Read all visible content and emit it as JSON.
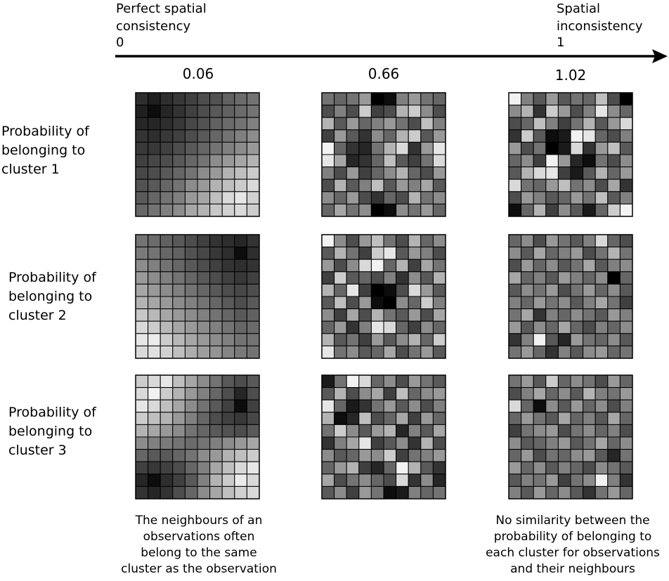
{
  "axis": {
    "left_label": "Perfect spatial\nconsistency",
    "left_value": "0",
    "right_label": "Spatial\ninconsistency",
    "right_value": "1"
  },
  "columns": [
    {
      "value": "0.06"
    },
    {
      "value": "0.66"
    },
    {
      "value": "1.02"
    }
  ],
  "rows": [
    {
      "label": "Probability of\nbelonging to\ncluster 1"
    },
    {
      "label": "Probability of\nbelonging to\ncluster 2"
    },
    {
      "label": "Probability of\nbelonging to\ncluster 3"
    }
  ],
  "notes": {
    "left": "The neighbours of an\nobservations often\nbelong  to the same\ncluster as the observation",
    "right": "No similarity between the\nprobability of belonging to\neach cluster for observations\nand their neighbours"
  },
  "grids": [
    [
      [
        [
          0.18,
          0.12,
          0.18,
          0.22,
          0.25,
          0.3,
          0.32,
          0.38,
          0.42,
          0.45
        ],
        [
          0.12,
          0.05,
          0.15,
          0.2,
          0.25,
          0.3,
          0.35,
          0.38,
          0.42,
          0.45
        ],
        [
          0.15,
          0.15,
          0.18,
          0.22,
          0.28,
          0.32,
          0.38,
          0.42,
          0.45,
          0.5
        ],
        [
          0.2,
          0.18,
          0.22,
          0.25,
          0.3,
          0.35,
          0.4,
          0.45,
          0.5,
          0.55
        ],
        [
          0.22,
          0.22,
          0.25,
          0.3,
          0.35,
          0.4,
          0.45,
          0.5,
          0.55,
          0.6
        ],
        [
          0.25,
          0.28,
          0.3,
          0.35,
          0.4,
          0.45,
          0.55,
          0.6,
          0.65,
          0.7
        ],
        [
          0.28,
          0.3,
          0.35,
          0.4,
          0.45,
          0.55,
          0.6,
          0.7,
          0.75,
          0.8
        ],
        [
          0.32,
          0.35,
          0.4,
          0.45,
          0.55,
          0.6,
          0.7,
          0.75,
          0.8,
          0.85
        ],
        [
          0.35,
          0.4,
          0.45,
          0.5,
          0.6,
          0.65,
          0.75,
          0.85,
          0.9,
          0.82
        ],
        [
          0.4,
          0.45,
          0.5,
          0.55,
          0.65,
          0.7,
          0.78,
          0.82,
          0.85,
          0.8
        ]
      ],
      [
        [
          0.45,
          0.4,
          0.45,
          0.6,
          0.0,
          0.05,
          0.5,
          0.6,
          0.45,
          0.4
        ],
        [
          0.3,
          0.5,
          0.3,
          0.8,
          0.25,
          0.3,
          0.7,
          0.8,
          0.55,
          0.3
        ],
        [
          0.7,
          0.35,
          0.6,
          0.4,
          0.5,
          0.6,
          0.45,
          0.3,
          0.75,
          0.5
        ],
        [
          0.25,
          0.6,
          0.35,
          0.2,
          0.55,
          0.4,
          0.7,
          0.8,
          0.35,
          0.6
        ],
        [
          0.95,
          0.4,
          0.2,
          0.15,
          0.45,
          0.7,
          0.85,
          0.2,
          0.6,
          0.9
        ],
        [
          0.9,
          0.65,
          0.15,
          0.2,
          0.4,
          0.75,
          0.35,
          0.25,
          0.45,
          0.85
        ],
        [
          0.5,
          0.3,
          0.6,
          0.25,
          0.4,
          0.55,
          0.7,
          0.4,
          0.3,
          0.6
        ],
        [
          0.3,
          0.7,
          0.35,
          0.5,
          0.75,
          0.35,
          0.6,
          0.5,
          0.65,
          0.35
        ],
        [
          0.55,
          0.4,
          0.6,
          0.3,
          0.2,
          0.4,
          0.3,
          0.7,
          0.45,
          0.55
        ],
        [
          0.4,
          0.65,
          0.45,
          0.55,
          0.0,
          0.05,
          0.55,
          0.45,
          0.6,
          0.4
        ]
      ],
      [
        [
          0.95,
          0.5,
          0.35,
          0.6,
          0.35,
          0.45,
          0.4,
          0.75,
          0.3,
          0.0
        ],
        [
          0.55,
          0.7,
          0.2,
          0.8,
          0.6,
          0.3,
          0.5,
          0.9,
          0.55,
          0.4
        ],
        [
          0.3,
          0.4,
          0.75,
          0.5,
          0.25,
          0.45,
          0.7,
          0.35,
          0.6,
          0.85
        ],
        [
          0.2,
          0.8,
          0.35,
          0.05,
          0.1,
          0.95,
          0.9,
          0.4,
          0.3,
          0.5
        ],
        [
          0.6,
          0.3,
          0.45,
          0.0,
          0.1,
          0.85,
          0.2,
          0.6,
          0.75,
          0.35
        ],
        [
          0.4,
          0.55,
          0.25,
          0.95,
          0.6,
          0.15,
          0.05,
          0.45,
          0.3,
          0.55
        ],
        [
          0.35,
          0.7,
          0.85,
          0.9,
          0.25,
          0.1,
          0.35,
          0.7,
          0.4,
          0.6
        ],
        [
          0.85,
          0.45,
          0.4,
          0.6,
          0.75,
          0.45,
          0.55,
          0.3,
          0.65,
          0.2
        ],
        [
          0.3,
          0.6,
          0.5,
          0.35,
          0.4,
          0.6,
          0.45,
          0.75,
          0.35,
          0.5
        ],
        [
          0.05,
          0.4,
          0.7,
          0.25,
          0.55,
          0.35,
          0.1,
          0.4,
          0.8,
          0.95
        ]
      ]
    ],
    [
      [
        [
          0.45,
          0.42,
          0.38,
          0.35,
          0.3,
          0.25,
          0.2,
          0.18,
          0.15,
          0.2
        ],
        [
          0.48,
          0.45,
          0.4,
          0.38,
          0.32,
          0.28,
          0.22,
          0.18,
          0.05,
          0.18
        ],
        [
          0.55,
          0.5,
          0.45,
          0.4,
          0.35,
          0.3,
          0.25,
          0.2,
          0.18,
          0.2
        ],
        [
          0.6,
          0.55,
          0.5,
          0.45,
          0.4,
          0.35,
          0.3,
          0.25,
          0.22,
          0.25
        ],
        [
          0.65,
          0.6,
          0.55,
          0.5,
          0.45,
          0.4,
          0.35,
          0.3,
          0.28,
          0.3
        ],
        [
          0.7,
          0.65,
          0.6,
          0.55,
          0.5,
          0.45,
          0.4,
          0.35,
          0.3,
          0.35
        ],
        [
          0.78,
          0.72,
          0.65,
          0.6,
          0.55,
          0.5,
          0.45,
          0.4,
          0.35,
          0.38
        ],
        [
          0.85,
          0.8,
          0.72,
          0.65,
          0.6,
          0.55,
          0.5,
          0.45,
          0.4,
          0.42
        ],
        [
          0.9,
          0.92,
          0.8,
          0.72,
          0.65,
          0.6,
          0.55,
          0.5,
          0.45,
          0.45
        ],
        [
          0.85,
          0.88,
          0.82,
          0.75,
          0.68,
          0.62,
          0.58,
          0.52,
          0.48,
          0.45
        ]
      ],
      [
        [
          0.95,
          0.55,
          0.3,
          0.6,
          0.75,
          0.45,
          0.3,
          0.7,
          0.4,
          0.55
        ],
        [
          0.35,
          0.7,
          0.45,
          0.25,
          0.8,
          0.9,
          0.35,
          0.6,
          0.5,
          0.3
        ],
        [
          0.6,
          0.3,
          0.55,
          0.85,
          0.95,
          0.4,
          0.7,
          0.25,
          0.65,
          0.45
        ],
        [
          0.25,
          0.8,
          0.35,
          0.4,
          0.3,
          0.5,
          0.2,
          0.55,
          0.35,
          0.7
        ],
        [
          0.7,
          0.4,
          0.9,
          0.25,
          0.0,
          0.05,
          0.3,
          0.85,
          0.6,
          0.35
        ],
        [
          0.35,
          0.75,
          0.3,
          0.6,
          0.05,
          0.0,
          0.55,
          0.4,
          0.8,
          0.5
        ],
        [
          0.55,
          0.25,
          0.65,
          0.3,
          0.7,
          0.45,
          0.35,
          0.6,
          0.3,
          0.65
        ],
        [
          0.4,
          0.6,
          0.2,
          0.5,
          0.9,
          0.85,
          0.4,
          0.25,
          0.55,
          0.4
        ],
        [
          0.7,
          0.35,
          0.45,
          0.25,
          0.6,
          0.35,
          0.55,
          0.7,
          0.4,
          0.8
        ],
        [
          0.9,
          0.45,
          0.55,
          0.35,
          0.4,
          0.65,
          0.3,
          0.45,
          0.6,
          0.35
        ]
      ],
      [
        [
          0.4,
          0.55,
          0.3,
          0.6,
          0.45,
          0.35,
          0.5,
          0.85,
          0.4,
          0.3
        ],
        [
          0.55,
          0.35,
          0.65,
          0.4,
          0.5,
          0.6,
          0.3,
          0.45,
          0.7,
          0.45
        ],
        [
          0.3,
          0.6,
          0.4,
          0.55,
          0.35,
          0.45,
          0.65,
          0.35,
          0.5,
          0.55
        ],
        [
          0.65,
          0.4,
          0.5,
          0.35,
          0.6,
          0.5,
          0.4,
          0.55,
          0.0,
          0.4
        ],
        [
          0.35,
          0.55,
          0.45,
          0.6,
          0.3,
          0.45,
          0.6,
          0.4,
          0.55,
          0.35
        ],
        [
          0.5,
          0.4,
          0.6,
          0.45,
          0.55,
          0.35,
          0.5,
          0.65,
          0.45,
          0.25
        ],
        [
          0.45,
          0.65,
          0.2,
          0.5,
          0.4,
          0.55,
          0.45,
          0.35,
          0.6,
          0.5
        ],
        [
          0.6,
          0.35,
          0.55,
          0.4,
          0.65,
          0.4,
          0.3,
          0.5,
          0.4,
          0.55
        ],
        [
          0.2,
          0.5,
          0.95,
          0.35,
          0.15,
          0.6,
          0.45,
          0.4,
          0.55,
          0.35
        ],
        [
          0.45,
          0.6,
          0.4,
          0.2,
          0.5,
          0.35,
          0.55,
          0.6,
          0.4,
          0.45
        ]
      ]
    ],
    [
      [
        [
          0.8,
          0.85,
          0.9,
          0.75,
          0.65,
          0.55,
          0.45,
          0.35,
          0.3,
          0.35
        ],
        [
          0.85,
          0.95,
          0.8,
          0.7,
          0.6,
          0.5,
          0.4,
          0.3,
          0.15,
          0.3
        ],
        [
          0.9,
          0.85,
          0.75,
          0.65,
          0.55,
          0.45,
          0.35,
          0.25,
          0.05,
          0.25
        ],
        [
          0.8,
          0.75,
          0.7,
          0.6,
          0.5,
          0.4,
          0.3,
          0.25,
          0.22,
          0.28
        ],
        [
          0.7,
          0.65,
          0.6,
          0.55,
          0.45,
          0.4,
          0.35,
          0.32,
          0.3,
          0.35
        ],
        [
          0.55,
          0.5,
          0.48,
          0.45,
          0.42,
          0.45,
          0.5,
          0.55,
          0.6,
          0.65
        ],
        [
          0.4,
          0.35,
          0.35,
          0.4,
          0.45,
          0.55,
          0.6,
          0.7,
          0.75,
          0.8
        ],
        [
          0.25,
          0.22,
          0.25,
          0.3,
          0.4,
          0.5,
          0.65,
          0.75,
          0.85,
          0.9
        ],
        [
          0.15,
          0.05,
          0.18,
          0.25,
          0.35,
          0.5,
          0.7,
          0.8,
          0.92,
          0.85
        ],
        [
          0.2,
          0.15,
          0.2,
          0.3,
          0.4,
          0.55,
          0.65,
          0.75,
          0.82,
          0.85
        ]
      ],
      [
        [
          0.1,
          0.45,
          0.95,
          0.85,
          0.4,
          0.55,
          0.3,
          0.6,
          0.45,
          0.35
        ],
        [
          0.35,
          0.7,
          0.3,
          0.55,
          0.65,
          0.25,
          0.75,
          0.4,
          0.55,
          0.6
        ],
        [
          0.9,
          0.4,
          0.1,
          0.2,
          0.45,
          0.6,
          0.35,
          0.55,
          0.3,
          0.5
        ],
        [
          0.7,
          0.05,
          0.15,
          0.75,
          0.3,
          0.4,
          0.65,
          0.25,
          0.6,
          0.4
        ],
        [
          0.45,
          0.8,
          0.55,
          0.35,
          0.6,
          0.7,
          0.15,
          0.5,
          0.35,
          0.65
        ],
        [
          0.2,
          0.5,
          0.65,
          0.9,
          0.25,
          0.35,
          0.55,
          0.2,
          0.7,
          0.3
        ],
        [
          0.55,
          0.35,
          0.4,
          0.6,
          0.55,
          0.8,
          0.25,
          0.45,
          0.5,
          0.6
        ],
        [
          0.4,
          0.6,
          0.7,
          0.25,
          0.15,
          0.4,
          0.95,
          0.7,
          0.35,
          0.2
        ],
        [
          0.65,
          0.3,
          0.45,
          0.55,
          0.4,
          0.3,
          0.85,
          0.2,
          0.55,
          0.15
        ],
        [
          0.35,
          0.55,
          0.25,
          0.6,
          0.45,
          0.05,
          0.1,
          0.5,
          0.4,
          0.45
        ]
      ],
      [
        [
          0.45,
          0.6,
          0.35,
          0.8,
          0.4,
          0.55,
          0.45,
          0.3,
          0.6,
          0.4
        ],
        [
          0.3,
          0.5,
          0.65,
          0.4,
          0.55,
          0.35,
          0.7,
          0.5,
          0.45,
          0.6
        ],
        [
          0.85,
          0.4,
          0.05,
          0.55,
          0.35,
          0.6,
          0.4,
          0.55,
          0.3,
          0.5
        ],
        [
          0.4,
          0.6,
          0.45,
          0.35,
          0.65,
          0.4,
          0.5,
          0.35,
          0.65,
          0.4
        ],
        [
          0.25,
          0.45,
          0.55,
          0.6,
          0.3,
          0.45,
          0.55,
          0.4,
          0.5,
          0.3
        ],
        [
          0.55,
          0.35,
          0.4,
          0.5,
          0.6,
          0.35,
          0.45,
          0.65,
          0.4,
          0.55
        ],
        [
          0.4,
          0.6,
          0.3,
          0.45,
          0.4,
          0.55,
          0.6,
          0.35,
          0.15,
          0.45
        ],
        [
          0.6,
          0.4,
          0.55,
          0.35,
          0.5,
          0.4,
          0.3,
          0.55,
          0.45,
          0.35
        ],
        [
          0.35,
          0.5,
          0.45,
          0.6,
          0.25,
          0.45,
          0.55,
          0.95,
          0.5,
          0.2
        ],
        [
          0.5,
          0.35,
          0.6,
          0.4,
          0.55,
          0.35,
          0.2,
          0.45,
          0.6,
          0.4
        ]
      ]
    ]
  ]
}
